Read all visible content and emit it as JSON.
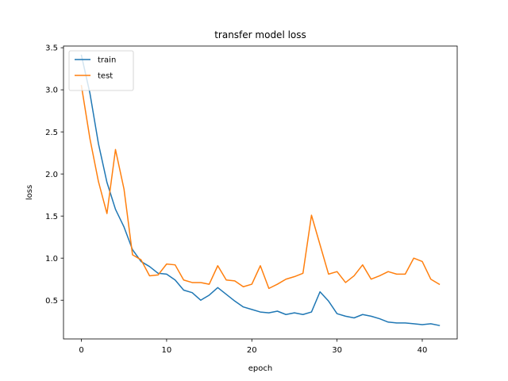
{
  "chart_data": {
    "type": "line",
    "title": "transfer model loss",
    "xlabel": "epoch",
    "ylabel": "loss",
    "xlim": [
      -2.1,
      44.1
    ],
    "ylim": [
      0.04,
      3.52
    ],
    "xticks": [
      0,
      10,
      20,
      30,
      40
    ],
    "yticks": [
      0.5,
      1.0,
      1.5,
      2.0,
      2.5,
      3.0,
      3.5
    ],
    "ytick_labels": [
      "0.5",
      "1.0",
      "1.5",
      "2.0",
      "2.5",
      "3.0",
      "3.5"
    ],
    "grid": false,
    "legend_position": "top-left",
    "x": [
      0,
      1,
      2,
      3,
      4,
      5,
      6,
      7,
      8,
      9,
      10,
      11,
      12,
      13,
      14,
      15,
      16,
      17,
      18,
      19,
      20,
      21,
      22,
      23,
      24,
      25,
      26,
      27,
      28,
      29,
      30,
      31,
      32,
      33,
      34,
      35,
      36,
      37,
      38,
      39,
      40,
      41,
      42
    ],
    "series": [
      {
        "name": "train",
        "color": "#1f77b4",
        "values": [
          3.41,
          2.96,
          2.36,
          1.9,
          1.58,
          1.37,
          1.1,
          0.96,
          0.9,
          0.82,
          0.81,
          0.74,
          0.62,
          0.59,
          0.5,
          0.56,
          0.65,
          0.57,
          0.49,
          0.42,
          0.39,
          0.36,
          0.35,
          0.37,
          0.33,
          0.35,
          0.33,
          0.36,
          0.6,
          0.49,
          0.34,
          0.31,
          0.29,
          0.33,
          0.31,
          0.28,
          0.24,
          0.23,
          0.23,
          0.22,
          0.21,
          0.22,
          0.2
        ]
      },
      {
        "name": "test",
        "color": "#ff7f0e",
        "values": [
          3.05,
          2.42,
          1.91,
          1.53,
          2.29,
          1.82,
          1.04,
          0.98,
          0.79,
          0.8,
          0.93,
          0.92,
          0.74,
          0.71,
          0.71,
          0.69,
          0.91,
          0.74,
          0.73,
          0.66,
          0.69,
          0.91,
          0.64,
          0.69,
          0.75,
          0.78,
          0.82,
          1.51,
          1.16,
          0.81,
          0.84,
          0.71,
          0.79,
          0.92,
          0.75,
          0.79,
          0.84,
          0.81,
          0.81,
          1.0,
          0.96,
          0.75,
          0.69
        ]
      }
    ]
  }
}
